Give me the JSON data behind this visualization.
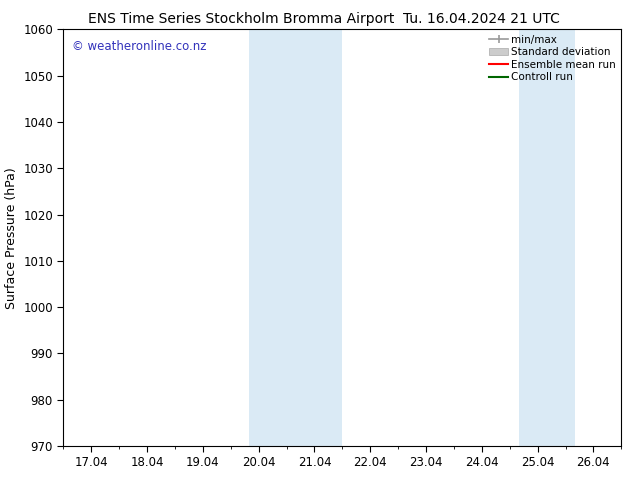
{
  "title_left": "ENS Time Series Stockholm Bromma Airport",
  "title_right": "Tu. 16.04.2024 21 UTC",
  "ylabel": "Surface Pressure (hPa)",
  "ylim": [
    970,
    1060
  ],
  "yticks": [
    970,
    980,
    990,
    1000,
    1010,
    1020,
    1030,
    1040,
    1050,
    1060
  ],
  "xtick_labels": [
    "17.04",
    "18.04",
    "19.04",
    "20.04",
    "21.04",
    "22.04",
    "23.04",
    "24.04",
    "25.04",
    "26.04"
  ],
  "n_xticks": 10,
  "xlim_data": [
    0,
    9
  ],
  "shade_regions": [
    {
      "x_start": 2.83,
      "x_end": 4.5
    },
    {
      "x_start": 7.67,
      "x_end": 8.67
    }
  ],
  "shade_color": "#daeaf5",
  "watermark_text": "© weatheronline.co.nz",
  "watermark_color": "#3333bb",
  "background_color": "#ffffff",
  "legend_fontsize": 7.5,
  "title_fontsize": 10,
  "tick_fontsize": 8.5,
  "ylabel_fontsize": 9
}
